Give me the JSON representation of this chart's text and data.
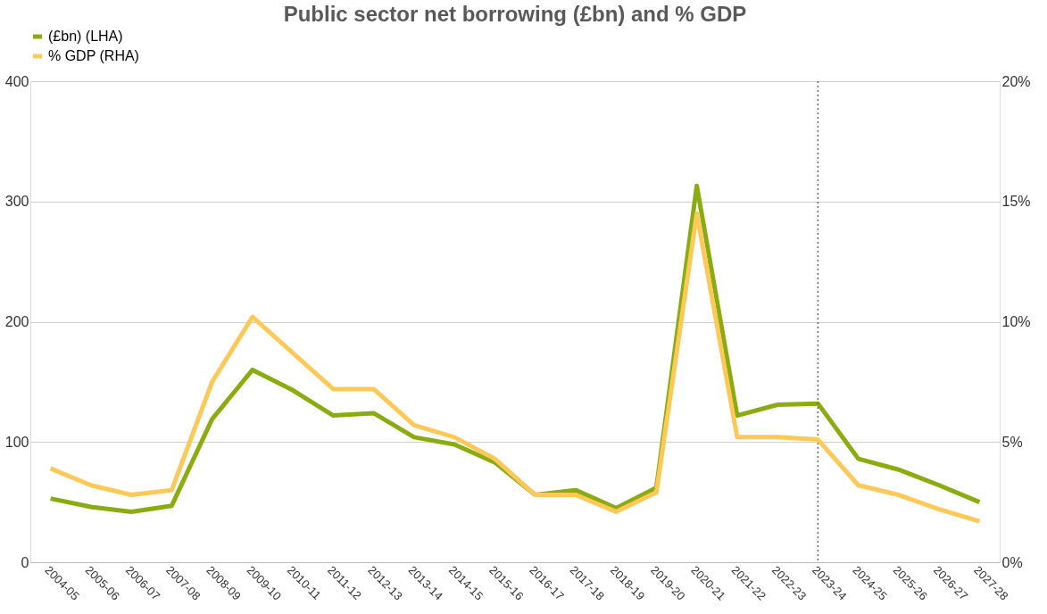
{
  "chart_data": {
    "type": "line",
    "title": "Public sector net borrowing (£bn) and % GDP",
    "categories": [
      "2004-05",
      "2005-06",
      "2006-07",
      "2007-08",
      "2008-09",
      "2009-10",
      "2010-11",
      "2011-12",
      "2012-13",
      "2013-14",
      "2014-15",
      "2015-16",
      "2016-17",
      "2017-18",
      "2018-19",
      "2019-20",
      "2020-21",
      "2021-22",
      "2022-23",
      "2023-24",
      "2024-25",
      "2025-26",
      "2026-27",
      "2027-28"
    ],
    "series": [
      {
        "name": "(£bn) (LHA)",
        "color": "#8aac10",
        "values": [
          53,
          46,
          42,
          47,
          119,
          160,
          143,
          122,
          124,
          104,
          98,
          83,
          56,
          60,
          45,
          62,
          313,
          122,
          131,
          132,
          86,
          77,
          64,
          50
        ]
      },
      {
        "name": "% GDP (RHA)",
        "color": "#ffc95a",
        "axis": "y2",
        "values": [
          3.9,
          3.2,
          2.8,
          3.0,
          7.5,
          10.2,
          8.7,
          7.2,
          7.2,
          5.7,
          5.2,
          4.3,
          2.8,
          2.8,
          2.1,
          2.9,
          14.5,
          5.2,
          5.2,
          5.1,
          3.2,
          2.8,
          2.2,
          1.7
        ]
      }
    ],
    "ylim": [
      0,
      400
    ],
    "yticks": [
      0,
      100,
      200,
      300,
      400
    ],
    "y2lim": [
      0,
      20
    ],
    "y2ticks": [
      {
        "value": 0,
        "label": "0%"
      },
      {
        "value": 5,
        "label": "5%"
      },
      {
        "value": 10,
        "label": "10%"
      },
      {
        "value": 15,
        "label": "15%"
      },
      {
        "value": 20,
        "label": "20%"
      }
    ],
    "ref_lines": [
      {
        "axis": "x",
        "value": "2023-24",
        "line_style": "dotted",
        "color": "#666666"
      }
    ],
    "grid": "y",
    "legend": "top",
    "marker": "none",
    "line_style": "solid"
  }
}
